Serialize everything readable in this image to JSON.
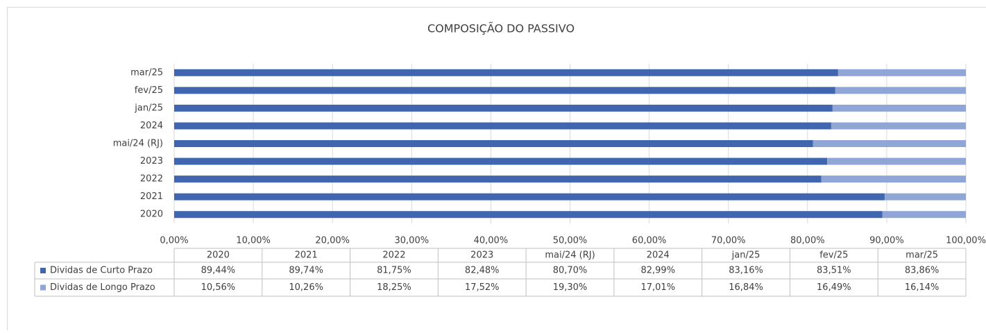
{
  "chart_data": {
    "type": "stacked_bar_horizontal",
    "title": "COMPOSIÇÃO DO PASSIVO",
    "categories": [
      "2020",
      "2021",
      "2022",
      "2023",
      "mai/24 (RJ)",
      "2024",
      "jan/25",
      "fev/25",
      "mar/25"
    ],
    "series": [
      {
        "name": "Dividas de Curto Prazo",
        "color": "#4066b0",
        "values": [
          89.44,
          89.74,
          81.75,
          82.48,
          80.7,
          82.99,
          83.16,
          83.51,
          83.86
        ],
        "value_labels": [
          "89,44%",
          "89,74%",
          "81,75%",
          "82,48%",
          "80,70%",
          "82,99%",
          "83,16%",
          "83,51%",
          "83,86%"
        ]
      },
      {
        "name": "Dividas de Longo Prazo",
        "color": "#8fa6d7",
        "values": [
          10.56,
          10.26,
          18.25,
          17.52,
          19.3,
          17.01,
          16.84,
          16.49,
          16.14
        ],
        "value_labels": [
          "10,56%",
          "10,26%",
          "18,25%",
          "17,52%",
          "19,30%",
          "17,01%",
          "16,84%",
          "16,49%",
          "16,14%"
        ]
      }
    ],
    "xlim": [
      0,
      100
    ],
    "xticks": [
      {
        "value": 0,
        "label": "0,00%"
      },
      {
        "value": 10,
        "label": "10,00%"
      },
      {
        "value": 20,
        "label": "20,00%"
      },
      {
        "value": 30,
        "label": "30,00%"
      },
      {
        "value": 40,
        "label": "40,00%"
      },
      {
        "value": 50,
        "label": "50,00%"
      },
      {
        "value": 60,
        "label": "60,00%"
      },
      {
        "value": 70,
        "label": "70,00%"
      },
      {
        "value": 80,
        "label": "80,00%"
      },
      {
        "value": 90,
        "label": "90,00%"
      },
      {
        "value": 100,
        "label": "100,00%"
      }
    ],
    "grid": true
  }
}
